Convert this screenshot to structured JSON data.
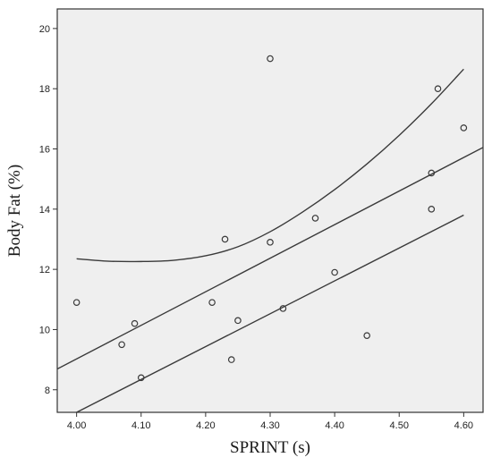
{
  "chart_data": {
    "type": "scatter",
    "title": "",
    "xlabel": "SPRINT (s)",
    "ylabel": "Body Fat (%)",
    "xlim": [
      3.97,
      4.63
    ],
    "ylim": [
      7.25,
      20.65
    ],
    "grid": false,
    "x_ticks": [
      4.0,
      4.1,
      4.2,
      4.3,
      4.4,
      4.5,
      4.6
    ],
    "x_tick_labels": [
      "4.00",
      "4.10",
      "4.20",
      "4.30",
      "4.40",
      "4.50",
      "4.60"
    ],
    "y_ticks": [
      8,
      10,
      12,
      14,
      16,
      18,
      20
    ],
    "y_tick_labels": [
      "8",
      "10",
      "12",
      "14",
      "16",
      "18",
      "20"
    ],
    "points": [
      {
        "x": 4.0,
        "y": 10.9
      },
      {
        "x": 4.07,
        "y": 9.5
      },
      {
        "x": 4.09,
        "y": 10.2
      },
      {
        "x": 4.1,
        "y": 8.4
      },
      {
        "x": 4.21,
        "y": 10.9
      },
      {
        "x": 4.23,
        "y": 13.0
      },
      {
        "x": 4.24,
        "y": 9.0
      },
      {
        "x": 4.25,
        "y": 10.3
      },
      {
        "x": 4.3,
        "y": 19.0
      },
      {
        "x": 4.3,
        "y": 12.9
      },
      {
        "x": 4.32,
        "y": 10.7
      },
      {
        "x": 4.37,
        "y": 13.7
      },
      {
        "x": 4.4,
        "y": 11.9
      },
      {
        "x": 4.45,
        "y": 9.8
      },
      {
        "x": 4.55,
        "y": 15.2
      },
      {
        "x": 4.55,
        "y": 14.0
      },
      {
        "x": 4.56,
        "y": 18.0
      },
      {
        "x": 4.6,
        "y": 16.7
      }
    ],
    "fit_line": {
      "x": [
        3.97,
        4.63
      ],
      "y": [
        8.69,
        16.05
      ]
    },
    "confidence_upper": {
      "x": [
        4.0,
        4.05,
        4.1,
        4.15,
        4.2,
        4.25,
        4.3,
        4.35,
        4.4,
        4.45,
        4.5,
        4.55,
        4.6
      ],
      "y": [
        12.35,
        12.27,
        12.26,
        12.3,
        12.45,
        12.75,
        13.25,
        13.9,
        14.65,
        15.5,
        16.45,
        17.5,
        18.65
      ]
    },
    "confidence_lower": {
      "x": [
        4.0,
        4.6
      ],
      "y": [
        7.25,
        13.8
      ]
    },
    "colors": {
      "plot_background": "#efefef",
      "frame": "#333333",
      "line": "#3a3a3a",
      "marker": "#3a3a3a"
    }
  }
}
